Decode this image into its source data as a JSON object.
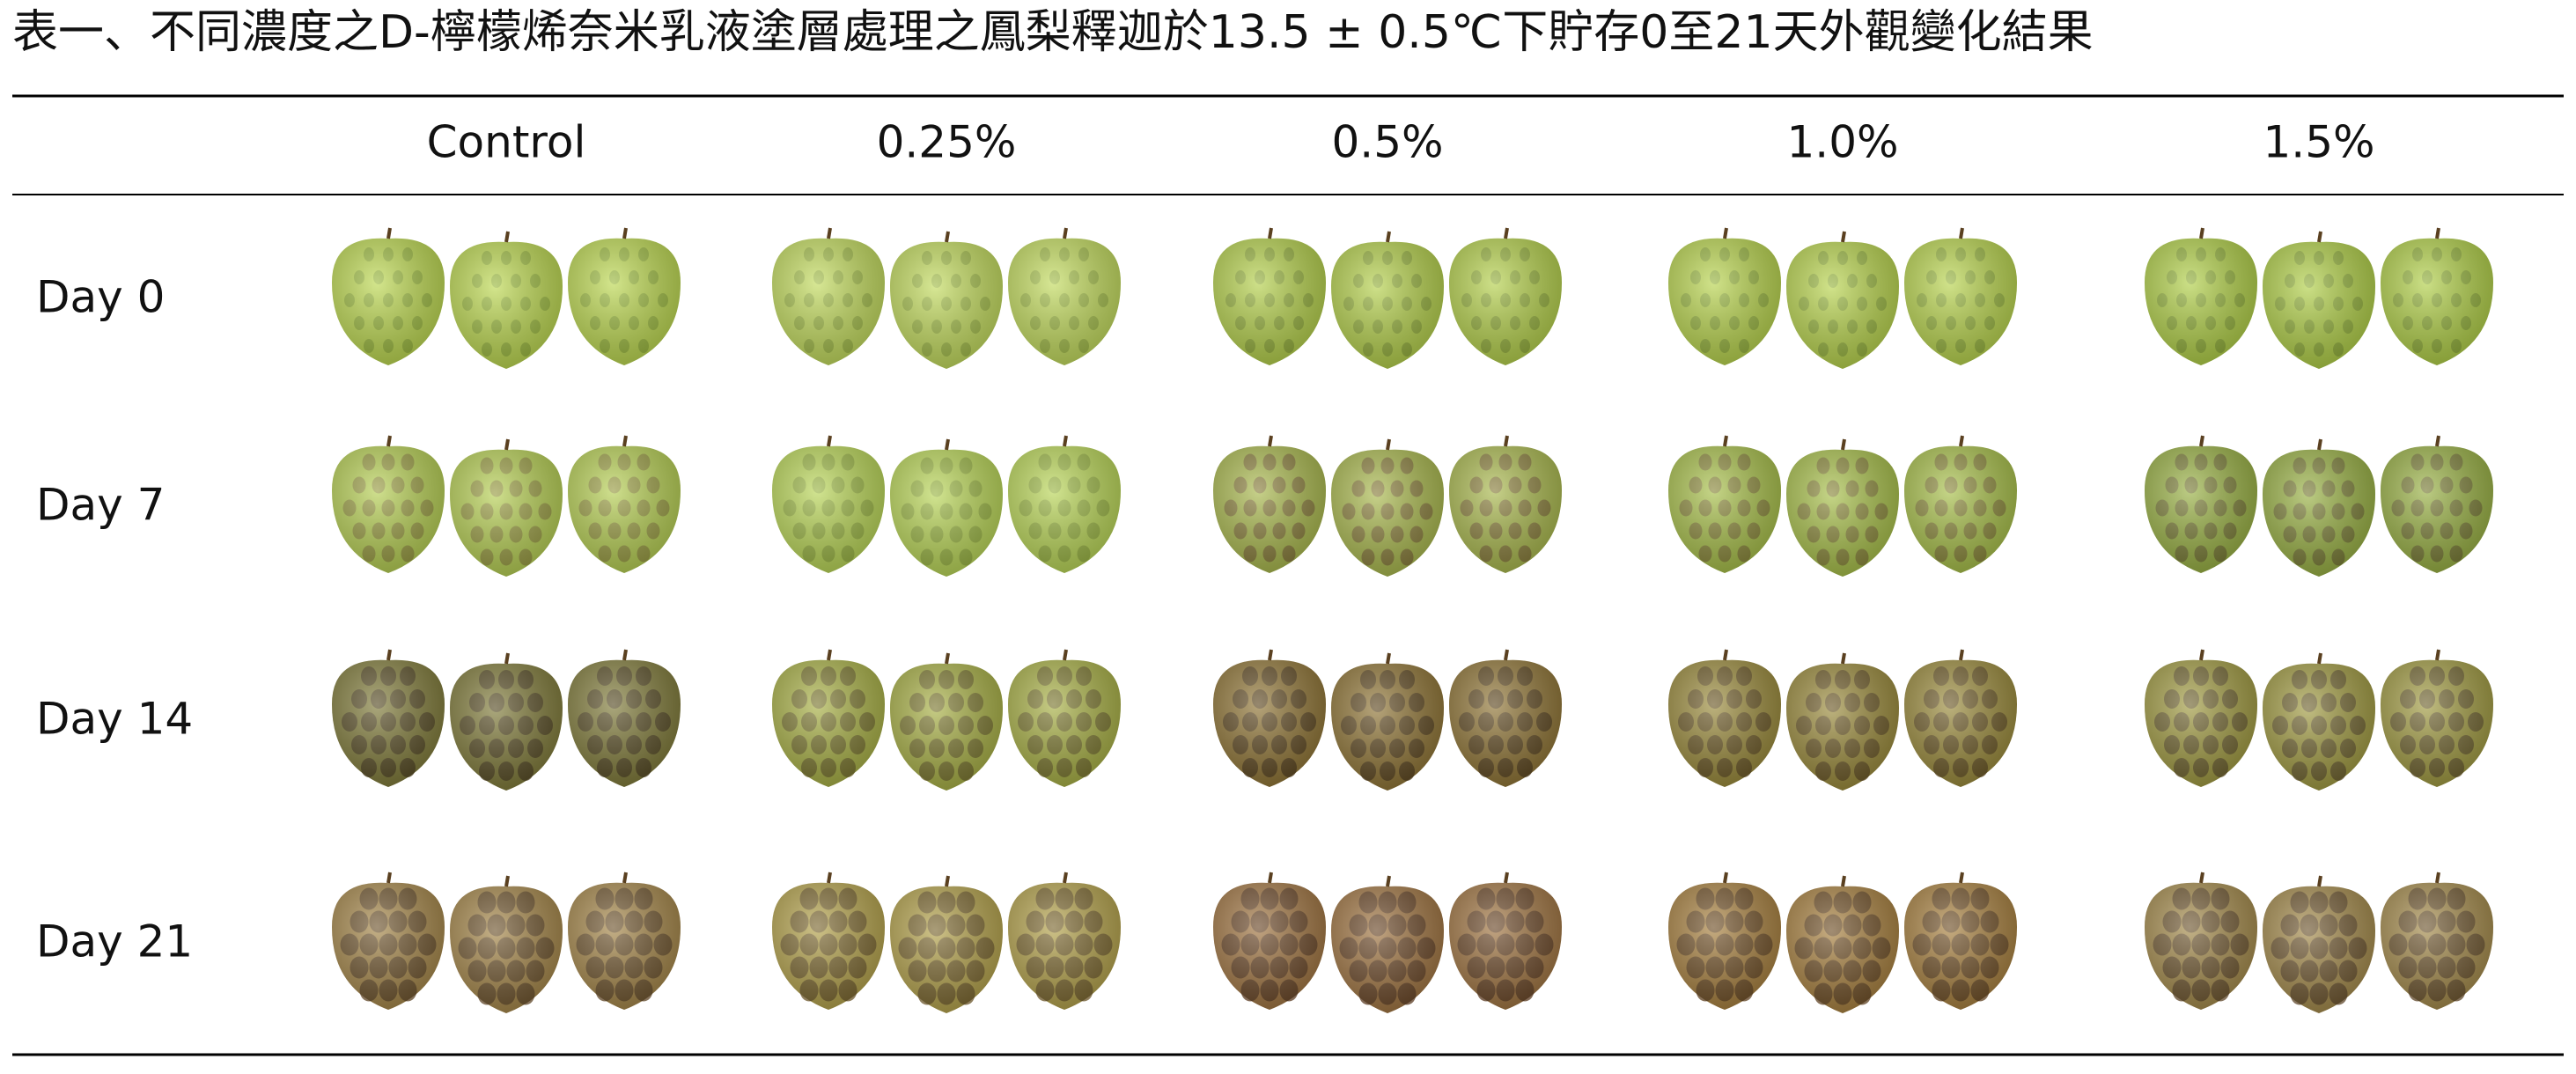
{
  "header": {
    "title": "表一、不同濃度之D-檸檬烯奈米乳液塗層處理之鳳梨釋迦於13.5 ± 0.5℃下貯存0至21天外觀變化結果"
  },
  "table": {
    "columns": [
      "Control",
      "0.25%",
      "0.5%",
      "1.0%",
      "1.5%"
    ],
    "row_labels": [
      "Day 0",
      "Day 7",
      "Day 14",
      "Day 21"
    ]
  }
}
